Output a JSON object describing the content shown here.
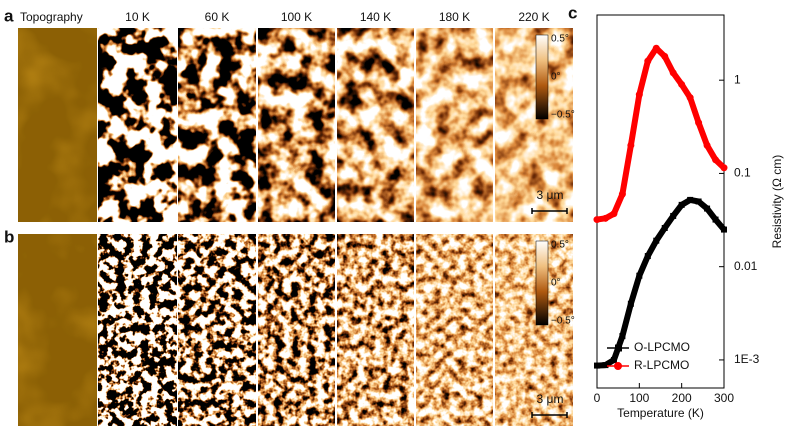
{
  "panel_labels": [
    "a",
    "b",
    "c"
  ],
  "columns": [
    "Topography",
    "10 K",
    "60 K",
    "100 K",
    "140 K",
    "180 K",
    "220 K"
  ],
  "colorbar_labels": [
    "0.5°",
    "0°",
    "−0.5°"
  ],
  "scale_bar": "3 μm",
  "chart_data": {
    "type": "line",
    "x": [
      0,
      20,
      40,
      60,
      80,
      100,
      120,
      140,
      160,
      180,
      200,
      220,
      240,
      260,
      280,
      300
    ],
    "xlim": [
      0,
      300
    ],
    "xticks": [
      0,
      100,
      200,
      300
    ],
    "ylim": [
      0.0005,
      5
    ],
    "log_y": true,
    "yticks": [
      {
        "value": 0.001,
        "label": "1E-3"
      },
      0.01,
      0.1,
      1
    ],
    "xlabel": "Temperature (K)",
    "ylabel": "Resistivity (Ω cm)",
    "legend": "lower left",
    "series": [
      {
        "name": "O-LPCMO",
        "color": "#000000",
        "marker": "square",
        "values": [
          0.00087,
          0.00088,
          0.001,
          0.0018,
          0.004,
          0.008,
          0.013,
          0.019,
          0.026,
          0.035,
          0.046,
          0.052,
          0.05,
          0.042,
          0.032,
          0.025
        ]
      },
      {
        "name": "R-LPCMO",
        "color": "#ff0000",
        "marker": "circle",
        "values": [
          0.032,
          0.033,
          0.037,
          0.06,
          0.2,
          0.7,
          1.6,
          2.2,
          1.8,
          1.2,
          0.9,
          0.65,
          0.35,
          0.2,
          0.14,
          0.115
        ]
      }
    ]
  }
}
